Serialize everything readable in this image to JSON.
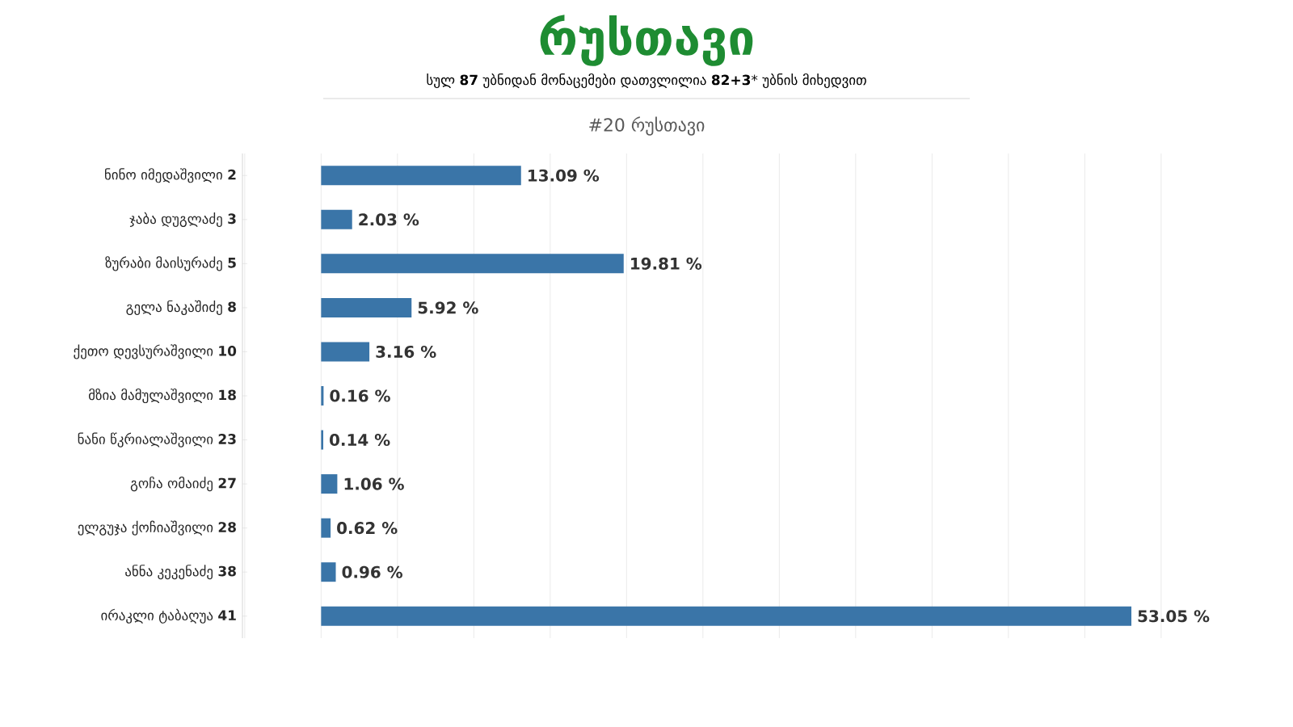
{
  "chart_data": {
    "type": "bar",
    "orientation": "horizontal",
    "title": "რუსთავი",
    "subtitle": "სულ **87** უბნიდან მონაცემები დათვლილია **82+3*** უბნის მიხედვით",
    "annotations": [
      "#20 რუსთავი"
    ],
    "categories": [
      "ნინო იმედაშვილი **2**",
      "ჯაბა დუგლაძე **3**",
      "ზურაბი მაისურაძე **5**",
      "გელა ნაკაშიძე **8**",
      "ქეთო დევსურაშვილი **10**",
      "მზია მამულაშვილი **18**",
      "ნანი წკრიალაშვილი **23**",
      "გოჩა ომაიძე **27**",
      "ელგუჯა ქოჩიაშვილი **28**",
      "ანნა კეკენაძე **38**",
      "ირაკლი ტაბაღუა **41**"
    ],
    "values": [
      13.09,
      2.03,
      19.81,
      5.92,
      3.16,
      0.16,
      0.14,
      1.06,
      0.62,
      0.96,
      53.05
    ],
    "value_labels": [
      "13.09 %",
      "2.03 %",
      "19.81 %",
      "5.92 %",
      "3.16 %",
      "0.16 %",
      "0.14 %",
      "1.06 %",
      "0.62 %",
      "0.96 %",
      "53.05 %"
    ],
    "color": "#3a75a8",
    "grid": "x",
    "tick_labels": "y"
  }
}
